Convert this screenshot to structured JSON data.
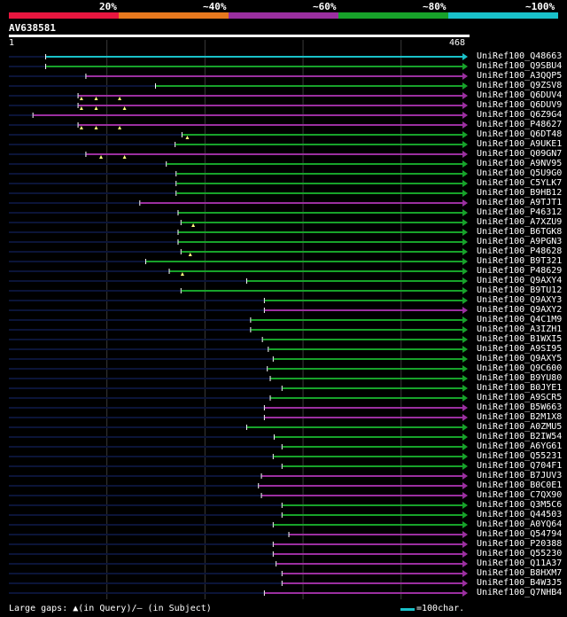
{
  "legend": {
    "labels": [
      "20%",
      "~40%",
      "~60%",
      "~80%",
      "~100%"
    ],
    "colors": [
      "#e8163f",
      "#e8791e",
      "#9b2fa0",
      "#17a22a",
      "#19c1c9"
    ]
  },
  "query": {
    "title": "AV638581",
    "start_label": "1",
    "end_label": "468",
    "length": 468
  },
  "footer": {
    "gaps_text": "Large gaps: ▲(in Query)/– (in Subject)",
    "scale_text": "=100char."
  },
  "colors": {
    "background": "#000000",
    "track": "#0b1438",
    "ruler": "#ffffff",
    "grid": "#3a3a3a"
  },
  "hits": [
    {
      "id": "UniRef100_Q48663",
      "start": 38,
      "cls": 4,
      "pre": 38,
      "gaps": []
    },
    {
      "id": "UniRef100_Q9SBU4",
      "start": 38,
      "cls": 3,
      "pre": 38,
      "gaps": []
    },
    {
      "id": "UniRef100_A3QQP5",
      "start": 79,
      "cls": 2,
      "pre": 79,
      "gaps": []
    },
    {
      "id": "UniRef100_Q9ZSV8",
      "start": 150,
      "cls": 3,
      "pre": 150,
      "gaps": []
    },
    {
      "id": "UniRef100_Q6DUV4",
      "start": 71,
      "cls": 2,
      "pre": 71,
      "gaps": [
        74,
        89,
        113
      ]
    },
    {
      "id": "UniRef100_Q6DUV9",
      "start": 71,
      "cls": 2,
      "pre": 71,
      "gaps": [
        74,
        89,
        118
      ]
    },
    {
      "id": "UniRef100_Q6Z9G4",
      "start": 25,
      "cls": 2,
      "pre": 25,
      "gaps": []
    },
    {
      "id": "UniRef100_P48627",
      "start": 71,
      "cls": 2,
      "pre": 71,
      "gaps": [
        74,
        89,
        113
      ]
    },
    {
      "id": "UniRef100_Q6DT48",
      "start": 177,
      "cls": 3,
      "pre": 177,
      "gaps": [
        182
      ]
    },
    {
      "id": "UniRef100_A9UKE1",
      "start": 170,
      "cls": 3,
      "pre": 170,
      "gaps": []
    },
    {
      "id": "UniRef100_Q09GN7",
      "start": 79,
      "cls": 2,
      "pre": 79,
      "gaps": [
        94,
        118
      ]
    },
    {
      "id": "UniRef100_A9NV95",
      "start": 161,
      "cls": 3,
      "pre": 161,
      "gaps": []
    },
    {
      "id": "UniRef100_Q5U9G0",
      "start": 171,
      "cls": 3,
      "pre": 171,
      "gaps": []
    },
    {
      "id": "UniRef100_C5YLK7",
      "start": 171,
      "cls": 3,
      "pre": 171,
      "gaps": []
    },
    {
      "id": "UniRef100_B9HB12",
      "start": 171,
      "cls": 3,
      "pre": 171,
      "gaps": []
    },
    {
      "id": "UniRef100_A9TJT1",
      "start": 134,
      "cls": 2,
      "pre": 134,
      "gaps": []
    },
    {
      "id": "UniRef100_P46312",
      "start": 173,
      "cls": 3,
      "pre": 173,
      "gaps": []
    },
    {
      "id": "UniRef100_A7XZU9",
      "start": 176,
      "cls": 3,
      "pre": 176,
      "gaps": [
        188
      ]
    },
    {
      "id": "UniRef100_B6TGK8",
      "start": 173,
      "cls": 3,
      "pre": 173,
      "gaps": []
    },
    {
      "id": "UniRef100_A9PGN3",
      "start": 173,
      "cls": 3,
      "pre": 173,
      "gaps": []
    },
    {
      "id": "UniRef100_P48628",
      "start": 176,
      "cls": 3,
      "pre": 176,
      "gaps": [
        185
      ]
    },
    {
      "id": "UniRef100_B9T321",
      "start": 140,
      "cls": 3,
      "pre": 140,
      "gaps": []
    },
    {
      "id": "UniRef100_P48629",
      "start": 164,
      "cls": 3,
      "pre": 164,
      "gaps": [
        177
      ]
    },
    {
      "id": "UniRef100_Q9AXY4",
      "start": 243,
      "cls": 3,
      "pre": 243,
      "gaps": []
    },
    {
      "id": "UniRef100_B9TU12",
      "start": 176,
      "cls": 3,
      "pre": 176,
      "gaps": []
    },
    {
      "id": "UniRef100_Q9AXY3",
      "start": 261,
      "cls": 3,
      "pre": 261,
      "gaps": []
    },
    {
      "id": "UniRef100_Q9AXY2",
      "start": 261,
      "cls": 2,
      "pre": 261,
      "gaps": []
    },
    {
      "id": "UniRef100_Q4C1M9",
      "start": 247,
      "cls": 3,
      "pre": 247,
      "gaps": []
    },
    {
      "id": "UniRef100_A3IZH1",
      "start": 247,
      "cls": 3,
      "pre": 247,
      "gaps": []
    },
    {
      "id": "UniRef100_B1WXI5",
      "start": 259,
      "cls": 3,
      "pre": 259,
      "gaps": []
    },
    {
      "id": "UniRef100_A9SI95",
      "start": 265,
      "cls": 3,
      "pre": 265,
      "gaps": []
    },
    {
      "id": "UniRef100_Q9AXY5",
      "start": 270,
      "cls": 3,
      "pre": 270,
      "gaps": []
    },
    {
      "id": "UniRef100_Q9C600",
      "start": 264,
      "cls": 3,
      "pre": 264,
      "gaps": []
    },
    {
      "id": "UniRef100_B9YU80",
      "start": 267,
      "cls": 3,
      "pre": 267,
      "gaps": []
    },
    {
      "id": "UniRef100_B0JYE1",
      "start": 279,
      "cls": 3,
      "pre": 279,
      "gaps": []
    },
    {
      "id": "UniRef100_A9SCR5",
      "start": 267,
      "cls": 3,
      "pre": 267,
      "gaps": []
    },
    {
      "id": "UniRef100_B5W663",
      "start": 261,
      "cls": 2,
      "pre": 261,
      "gaps": []
    },
    {
      "id": "UniRef100_B2M1X8",
      "start": 261,
      "cls": 2,
      "pre": 261,
      "gaps": []
    },
    {
      "id": "UniRef100_A0ZMU5",
      "start": 243,
      "cls": 3,
      "pre": 243,
      "gaps": []
    },
    {
      "id": "UniRef100_B2IW54",
      "start": 271,
      "cls": 3,
      "pre": 271,
      "gaps": []
    },
    {
      "id": "UniRef100_A6YG61",
      "start": 279,
      "cls": 3,
      "pre": 279,
      "gaps": []
    },
    {
      "id": "UniRef100_Q55231",
      "start": 270,
      "cls": 3,
      "pre": 270,
      "gaps": []
    },
    {
      "id": "UniRef100_Q704F1",
      "start": 279,
      "cls": 3,
      "pre": 279,
      "gaps": []
    },
    {
      "id": "UniRef100_B7JUV3",
      "start": 258,
      "cls": 2,
      "pre": 258,
      "gaps": []
    },
    {
      "id": "UniRef100_B0C0E1",
      "start": 255,
      "cls": 2,
      "pre": 255,
      "gaps": []
    },
    {
      "id": "UniRef100_C7QX90",
      "start": 258,
      "cls": 2,
      "pre": 258,
      "gaps": []
    },
    {
      "id": "UniRef100_Q3M5C6",
      "start": 279,
      "cls": 3,
      "pre": 279,
      "gaps": []
    },
    {
      "id": "UniRef100_Q44503",
      "start": 279,
      "cls": 3,
      "pre": 279,
      "gaps": []
    },
    {
      "id": "UniRef100_A0YQ64",
      "start": 270,
      "cls": 3,
      "pre": 270,
      "gaps": []
    },
    {
      "id": "UniRef100_Q54794",
      "start": 286,
      "cls": 2,
      "pre": 286,
      "gaps": []
    },
    {
      "id": "UniRef100_P20388",
      "start": 270,
      "cls": 2,
      "pre": 270,
      "gaps": []
    },
    {
      "id": "UniRef100_Q55230",
      "start": 270,
      "cls": 2,
      "pre": 270,
      "gaps": []
    },
    {
      "id": "UniRef100_Q11A37",
      "start": 273,
      "cls": 2,
      "pre": 273,
      "gaps": []
    },
    {
      "id": "UniRef100_B8HXM7",
      "start": 279,
      "cls": 2,
      "pre": 279,
      "gaps": []
    },
    {
      "id": "UniRef100_B4W3J5",
      "start": 279,
      "cls": 2,
      "pre": 279,
      "gaps": []
    },
    {
      "id": "UniRef100_Q7NHB4",
      "start": 261,
      "cls": 2,
      "pre": 261,
      "gaps": []
    }
  ]
}
